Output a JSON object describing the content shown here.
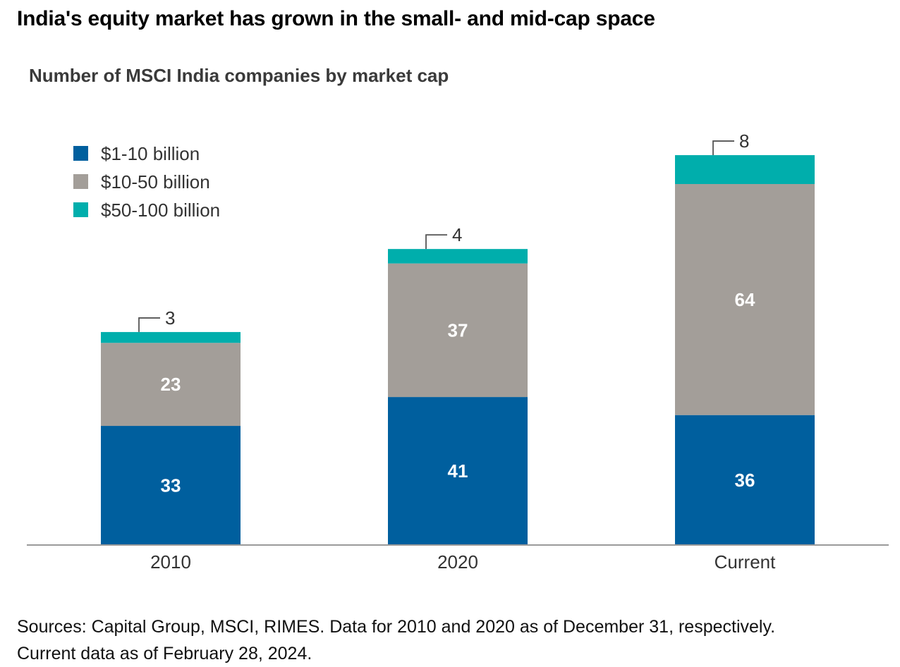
{
  "headline": "India's equity market has grown in the small- and mid-cap space",
  "source_lines": [
    "Sources: Capital Group, MSCI, RIMES. Data for 2010 and 2020 as of December 31, respectively.",
    "Current data as of February 28, 2024."
  ],
  "chart_data": {
    "type": "bar",
    "stacked": true,
    "title": "Number of MSCI India companies by market cap",
    "categories": [
      "2010",
      "2020",
      "Current"
    ],
    "series": [
      {
        "name": "$1-10 billion",
        "color": "#005f9e",
        "values": [
          33,
          41,
          36
        ]
      },
      {
        "name": "$10-50 billion",
        "color": "#a39e99",
        "values": [
          23,
          37,
          64
        ]
      },
      {
        "name": "$50-100 billion",
        "color": "#00aeac",
        "values": [
          3,
          4,
          8
        ]
      }
    ],
    "xlabel": "",
    "ylabel": "",
    "ylim": [
      0,
      108
    ],
    "grid": false,
    "legend": "top-left"
  }
}
